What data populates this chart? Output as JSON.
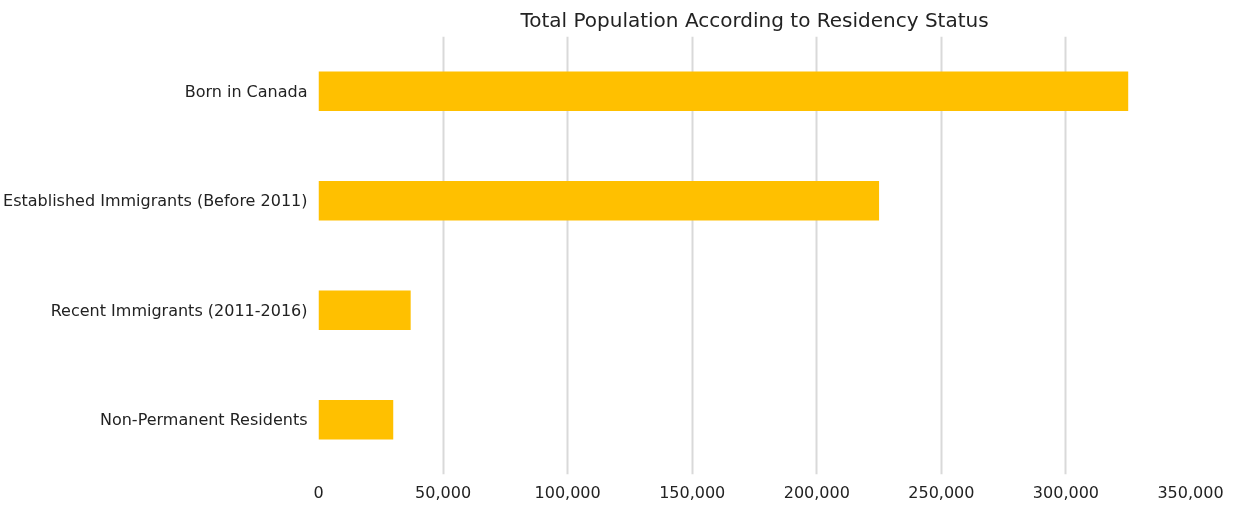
{
  "chart_data": {
    "type": "bar",
    "orientation": "horizontal",
    "title": "Total Population According to Residency Status",
    "categories": [
      "Born in Canada",
      "Established Immigrants (Before 2011)",
      "Recent Immigrants (2011-2016)",
      "Non-Permanent Residents"
    ],
    "series": [
      {
        "color": "#ffc000",
        "values": [
          325000,
          225000,
          37000,
          30000
        ]
      }
    ],
    "xlim": [
      0,
      350000
    ],
    "xticks": [
      {
        "value": 0,
        "label": "0"
      },
      {
        "value": 50000,
        "label": "50,000"
      },
      {
        "value": 100000,
        "label": "100,000"
      },
      {
        "value": 150000,
        "label": "150,000"
      },
      {
        "value": 200000,
        "label": "200,000"
      },
      {
        "value": 250000,
        "label": "250,000"
      },
      {
        "value": 300000,
        "label": "300,000"
      },
      {
        "value": 350000,
        "label": "350,000"
      }
    ],
    "grid": "x"
  }
}
